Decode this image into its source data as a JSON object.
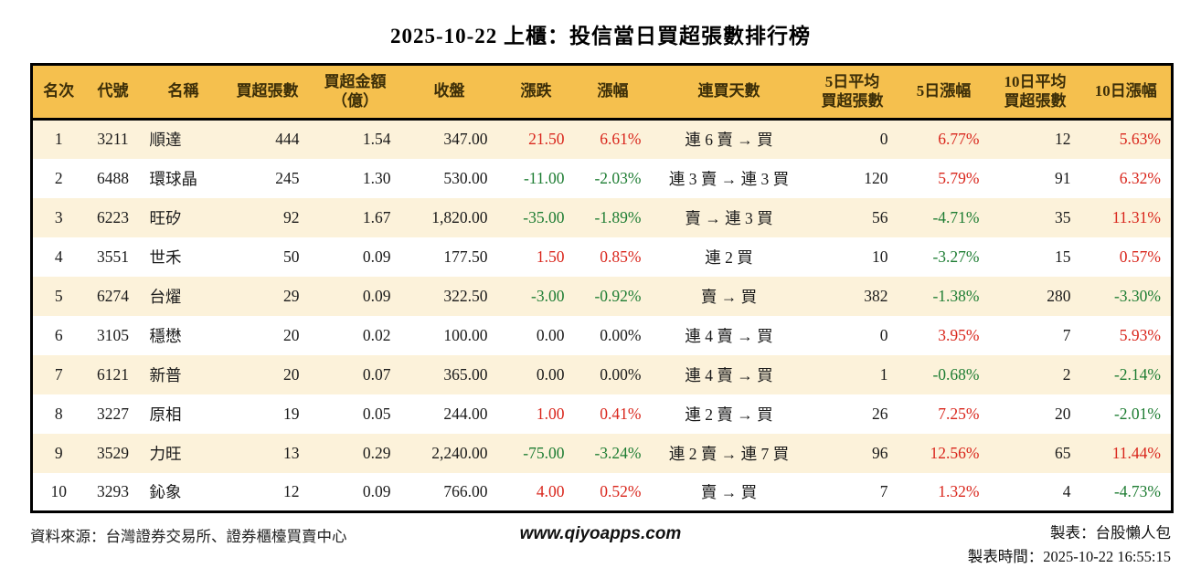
{
  "title": "2025-10-22 上櫃：投信當日買超張數排行榜",
  "colors": {
    "up": "#d9261c",
    "down": "#1e7d33",
    "flat": "#1a1a1a",
    "header_bg": "#f5c04e",
    "stripe": "#fcf2da"
  },
  "table": {
    "columns": [
      "名次",
      "代號",
      "名稱",
      "買超張數",
      "買超金額\n（億）",
      "收盤",
      "漲跌",
      "漲幅",
      "連買天數",
      "5日平均\n買超張數",
      "5日漲幅",
      "10日平均\n買超張數",
      "10日漲幅"
    ],
    "rows": [
      [
        "1",
        "3211",
        "順達",
        "444",
        "1.54",
        "347.00",
        "21.50",
        "6.61%",
        "連 6 賣 → 買",
        "0",
        "6.77%",
        "12",
        "5.63%"
      ],
      [
        "2",
        "6488",
        "環球晶",
        "245",
        "1.30",
        "530.00",
        "-11.00",
        "-2.03%",
        "連 3 賣 → 連 3 買",
        "120",
        "5.79%",
        "91",
        "6.32%"
      ],
      [
        "3",
        "6223",
        "旺矽",
        "92",
        "1.67",
        "1,820.00",
        "-35.00",
        "-1.89%",
        "賣 → 連 3 買",
        "56",
        "-4.71%",
        "35",
        "11.31%"
      ],
      [
        "4",
        "3551",
        "世禾",
        "50",
        "0.09",
        "177.50",
        "1.50",
        "0.85%",
        "連 2 買",
        "10",
        "-3.27%",
        "15",
        "0.57%"
      ],
      [
        "5",
        "6274",
        "台燿",
        "29",
        "0.09",
        "322.50",
        "-3.00",
        "-0.92%",
        "賣 → 買",
        "382",
        "-1.38%",
        "280",
        "-3.30%"
      ],
      [
        "6",
        "3105",
        "穩懋",
        "20",
        "0.02",
        "100.00",
        "0.00",
        "0.00%",
        "連 4 賣 → 買",
        "0",
        "3.95%",
        "7",
        "5.93%"
      ],
      [
        "7",
        "6121",
        "新普",
        "20",
        "0.07",
        "365.00",
        "0.00",
        "0.00%",
        "連 4 賣 → 買",
        "1",
        "-0.68%",
        "2",
        "-2.14%"
      ],
      [
        "8",
        "3227",
        "原相",
        "19",
        "0.05",
        "244.00",
        "1.00",
        "0.41%",
        "連 2 賣 → 買",
        "26",
        "7.25%",
        "20",
        "-2.01%"
      ],
      [
        "9",
        "3529",
        "力旺",
        "13",
        "0.29",
        "2,240.00",
        "-75.00",
        "-3.24%",
        "連 2 賣 → 連 7 買",
        "96",
        "12.56%",
        "65",
        "11.44%"
      ],
      [
        "10",
        "3293",
        "鈊象",
        "12",
        "0.09",
        "766.00",
        "4.00",
        "0.52%",
        "賣 → 買",
        "7",
        "1.32%",
        "4",
        "-4.73%"
      ]
    ]
  },
  "footer": {
    "source": "資料來源：台灣證券交易所、證券櫃檯買賣中心",
    "website": "www.qiyoapps.com",
    "maker": "製表：台股懶人包",
    "made_time": "製表時間：2025-10-22 16:55:15"
  }
}
